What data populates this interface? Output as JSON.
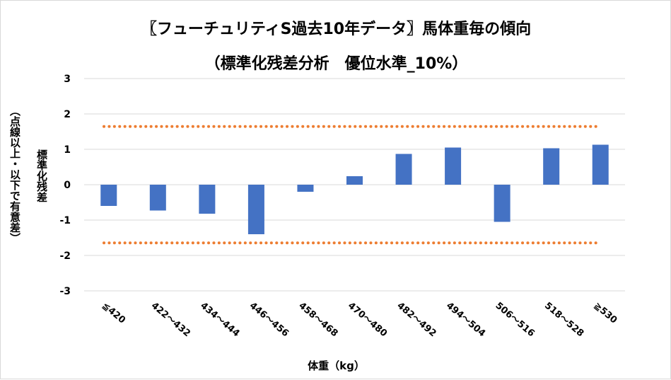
{
  "chart_data": {
    "type": "bar",
    "title": "〖フューチュリティS過去10年データ〗馬体重毎の傾向",
    "subtitle": "（標準化残差分析　優位水準_10%）",
    "ylabel": "標準化残差",
    "ylabel_note": "（点線以上・以下で有意差）",
    "xlabel": "体重（kg）",
    "ylim": [
      -3,
      3
    ],
    "yticks": [
      3,
      2,
      1,
      0,
      -1,
      -2,
      -3
    ],
    "categories": [
      "≦420",
      "422～432",
      "434～444",
      "446～456",
      "458～468",
      "470～480",
      "482～492",
      "494～504",
      "506～516",
      "518～528",
      "≧530"
    ],
    "values": [
      -0.6,
      -0.73,
      -0.82,
      -1.4,
      -0.2,
      0.24,
      0.87,
      1.05,
      -1.05,
      1.03,
      1.13
    ],
    "thresholds": [
      1.645,
      -1.645
    ],
    "grid": true,
    "bar_color": "#4472c4",
    "threshold_color": "#ed7d31"
  }
}
